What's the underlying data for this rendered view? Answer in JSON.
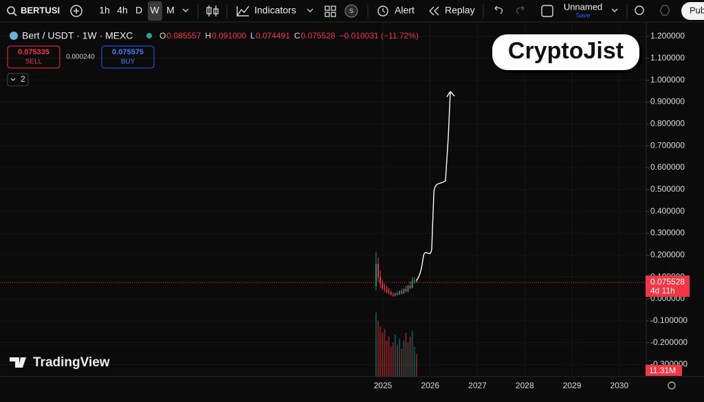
{
  "toolbar": {
    "symbol": "BERTUSI",
    "intervals": [
      "1h",
      "4h",
      "D",
      "W",
      "M"
    ],
    "indicators": "Indicators",
    "alert": "Alert",
    "replay": "Replay",
    "layout_name": "Unnamed",
    "save": "Save",
    "publish": "Pub"
  },
  "legend": {
    "title": "Bert / USDT · 1W · MEXC",
    "ohlc": [
      {
        "label": "O",
        "value": "0.085557"
      },
      {
        "label": "H",
        "value": "0.091000"
      },
      {
        "label": "L",
        "value": "0.074491"
      },
      {
        "label": "C",
        "value": "0.075528"
      }
    ],
    "change": "−0.010031 (−11.72%)"
  },
  "trade": {
    "sell_price": "0.075335",
    "sell": "SELL",
    "spread": "0.000240",
    "buy_price": "0.075575",
    "buy": "BUY"
  },
  "collapse": "2",
  "watermark": "CryptoJist",
  "brand": "TradingView",
  "chart": {
    "ylim": [
      -0.355,
      1.241
    ],
    "yticks": [
      {
        "value": 1.2,
        "label": "1.200000"
      },
      {
        "value": 1.1,
        "label": "1.100000"
      },
      {
        "value": 1.0,
        "label": "1.000000"
      },
      {
        "value": 0.9,
        "label": "0.900000"
      },
      {
        "value": 0.8,
        "label": "0.800000"
      },
      {
        "value": 0.7,
        "label": "0.700000"
      },
      {
        "value": 0.6,
        "label": "0.600000"
      },
      {
        "value": 0.5,
        "label": "0.500000"
      },
      {
        "value": 0.4,
        "label": "0.400000"
      },
      {
        "value": 0.3,
        "label": "0.300000"
      },
      {
        "value": 0.2,
        "label": "0.200000"
      },
      {
        "value": 0.1,
        "label": "0.100000"
      },
      {
        "value": 0,
        "label": "0.000000"
      },
      {
        "value": -0.1,
        "label": "-0.100000"
      },
      {
        "value": -0.2,
        "label": "-0.200000"
      },
      {
        "value": -0.3,
        "label": "-0.300000"
      }
    ],
    "xlim": [
      2016.9,
      2030.57
    ],
    "xticks": [
      2025,
      2026,
      2027,
      2028,
      2029,
      2030
    ],
    "candles": [
      [
        0.06,
        0.215,
        0.04,
        0.16
      ],
      [
        0.16,
        0.19,
        0.08,
        0.1
      ],
      [
        0.1,
        0.13,
        0.05,
        0.07
      ],
      [
        0.07,
        0.09,
        0.04,
        0.05
      ],
      [
        0.05,
        0.07,
        0.03,
        0.045
      ],
      [
        0.045,
        0.06,
        0.025,
        0.035
      ],
      [
        0.035,
        0.05,
        0.02,
        0.03
      ],
      [
        0.03,
        0.04,
        0.015,
        0.02
      ],
      [
        0.02,
        0.03,
        0.01,
        0.015
      ],
      [
        0.015,
        0.03,
        0.012,
        0.025
      ],
      [
        0.025,
        0.035,
        0.015,
        0.02
      ],
      [
        0.02,
        0.04,
        0.018,
        0.035
      ],
      [
        0.035,
        0.045,
        0.02,
        0.025
      ],
      [
        0.025,
        0.05,
        0.022,
        0.045
      ],
      [
        0.045,
        0.06,
        0.03,
        0.035
      ],
      [
        0.035,
        0.065,
        0.03,
        0.06
      ],
      [
        0.06,
        0.08,
        0.045,
        0.05
      ],
      [
        0.05,
        0.1,
        0.048,
        0.085
      ],
      [
        0.085,
        0.1,
        0.07,
        0.0855
      ],
      [
        0.085557,
        0.091,
        0.074491,
        0.075528
      ]
    ],
    "volumes": [
      32,
      28,
      25,
      22,
      24,
      18,
      20,
      15,
      17,
      21,
      16,
      19,
      14,
      18,
      22,
      17,
      20,
      23,
      15,
      11.31
    ],
    "last_price": 0.075528,
    "last_price_label": "0.075528",
    "countdown": "4d 11h",
    "volume_label": "11.31M",
    "up_color": "#089981",
    "down_color": "#f23645"
  }
}
